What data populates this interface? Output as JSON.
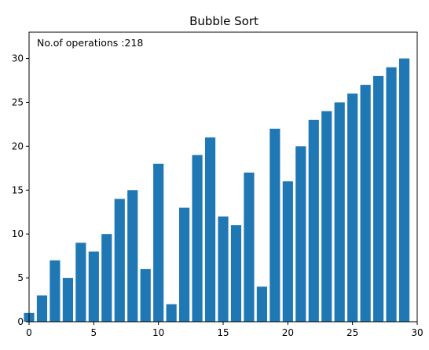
{
  "chart_data": {
    "type": "bar",
    "title": "Bubble Sort",
    "annotation": "No.of operations :218",
    "x": [
      0,
      1,
      2,
      3,
      4,
      5,
      6,
      7,
      8,
      9,
      10,
      11,
      12,
      13,
      14,
      15,
      16,
      17,
      18,
      19,
      20,
      21,
      22,
      23,
      24,
      25,
      26,
      27,
      28,
      29
    ],
    "values": [
      1,
      3,
      7,
      5,
      9,
      8,
      10,
      14,
      15,
      6,
      18,
      2,
      13,
      19,
      21,
      12,
      11,
      17,
      4,
      22,
      16,
      20,
      23,
      24,
      25,
      26,
      27,
      28,
      29,
      30
    ],
    "xlim": [
      0,
      30
    ],
    "ylim": [
      0,
      33
    ],
    "xticks": [
      0,
      5,
      10,
      15,
      20,
      25,
      30
    ],
    "yticks": [
      0,
      5,
      10,
      15,
      20,
      25,
      30
    ],
    "xlabel": "",
    "ylabel": "",
    "grid": false,
    "bar_color": "#1f77b4"
  }
}
